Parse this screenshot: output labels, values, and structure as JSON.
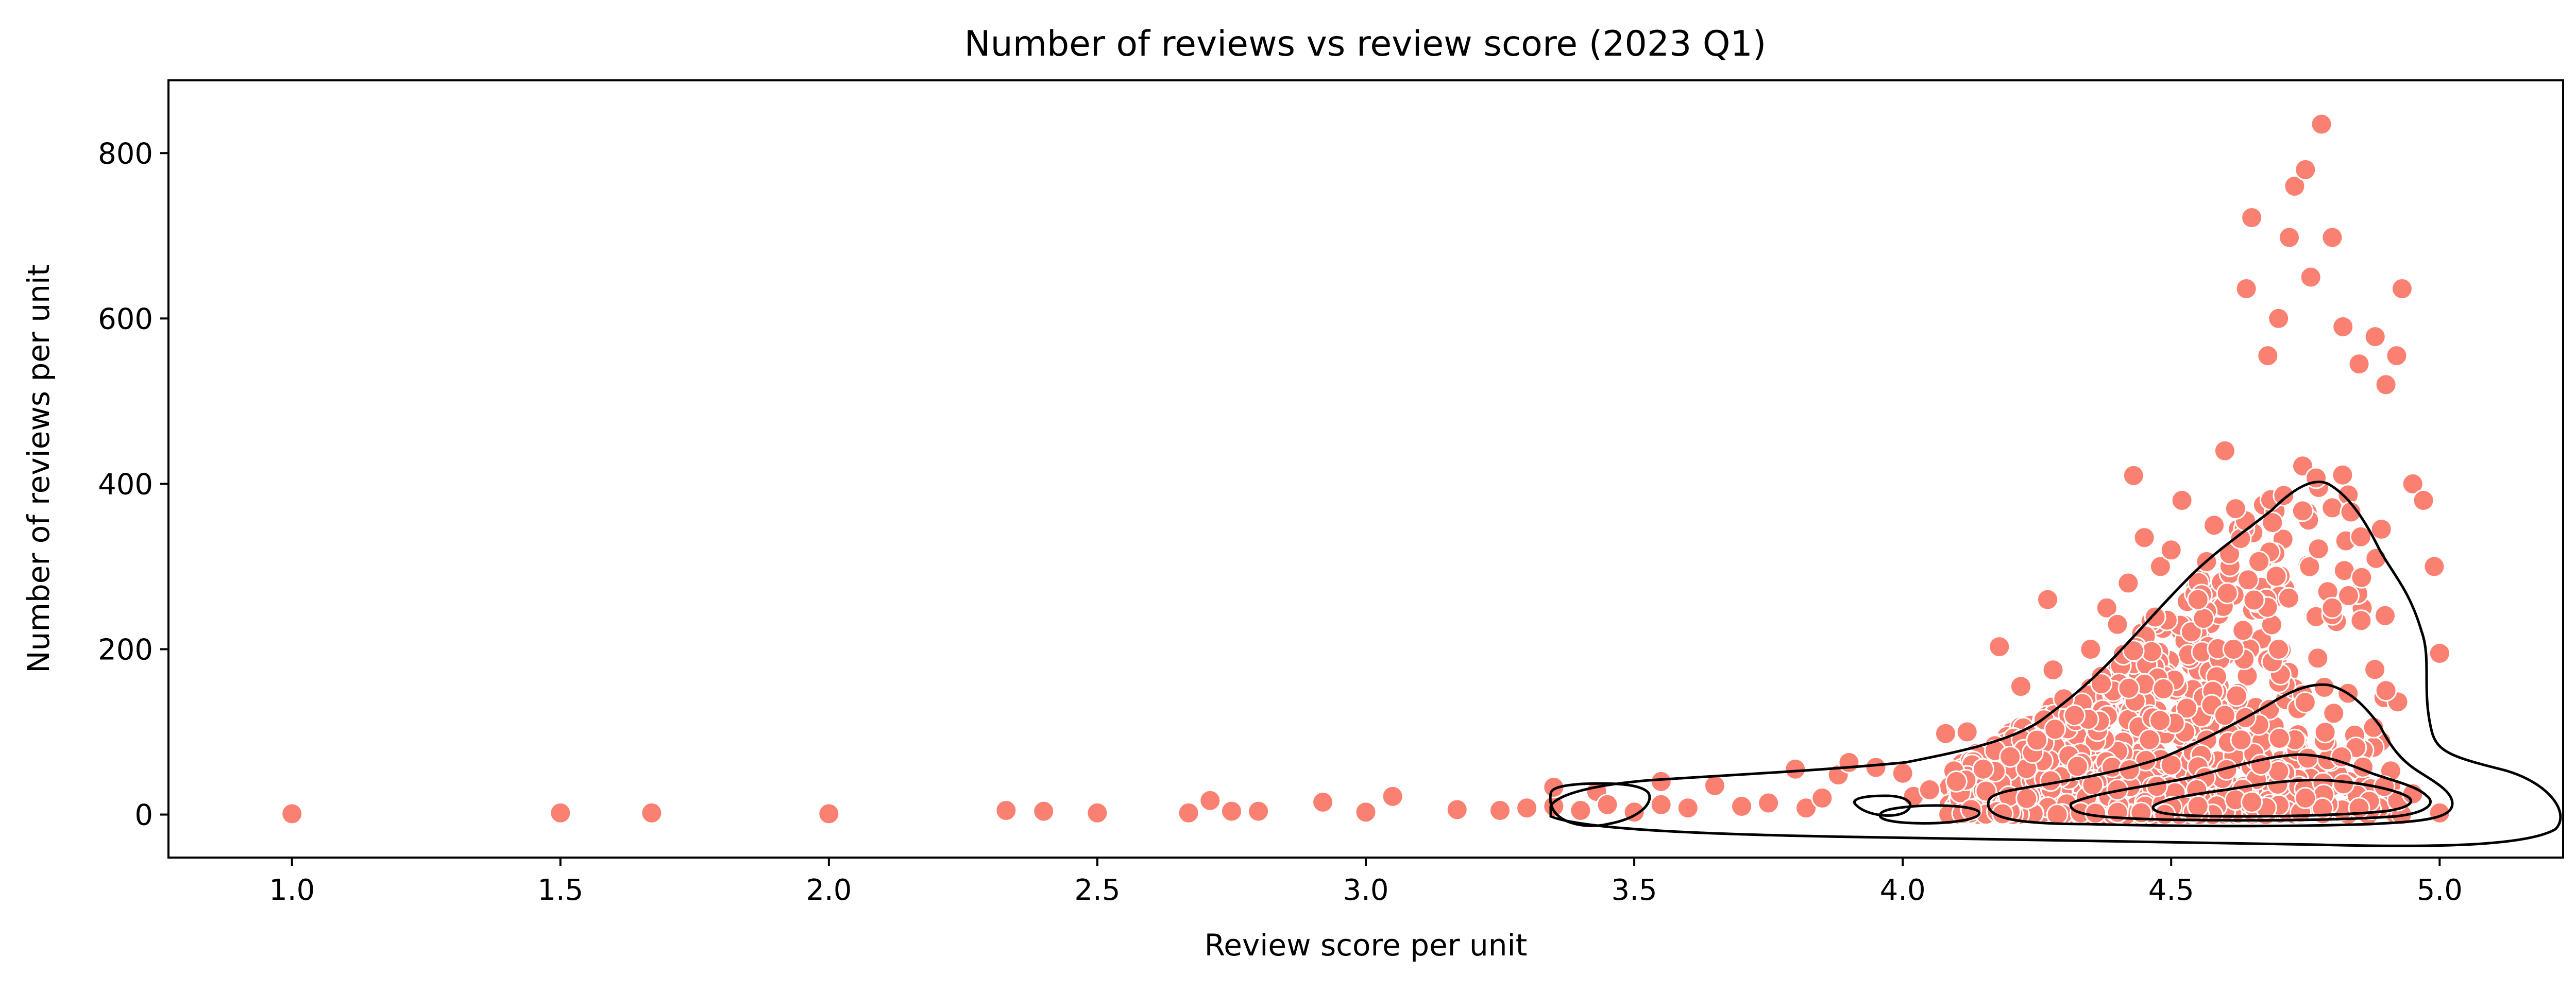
{
  "chart_data": {
    "type": "scatter",
    "title": "Number of reviews vs review score (2023 Q1)",
    "xlabel": "Review score per unit",
    "ylabel": "Number of reviews per unit",
    "xlim": [
      0.77,
      5.23
    ],
    "ylim": [
      -52,
      888
    ],
    "x_ticks": [
      "1.0",
      "1.5",
      "2.0",
      "2.5",
      "3.0",
      "3.5",
      "4.0",
      "4.5",
      "5.0"
    ],
    "y_ticks": [
      "0",
      "200",
      "400",
      "600",
      "800"
    ],
    "grid": false,
    "marker_color": "#fa8072",
    "marker_edge_color": "#ffffff",
    "contour_color": "#000000",
    "overlay": "kde-contours",
    "points": [
      [
        1.0,
        1
      ],
      [
        1.5,
        2
      ],
      [
        1.67,
        2
      ],
      [
        2.0,
        1
      ],
      [
        2.33,
        5
      ],
      [
        2.4,
        4
      ],
      [
        2.5,
        2
      ],
      [
        2.67,
        2
      ],
      [
        2.71,
        17
      ],
      [
        2.75,
        4
      ],
      [
        2.8,
        4
      ],
      [
        2.92,
        15
      ],
      [
        3.0,
        3
      ],
      [
        3.05,
        22
      ],
      [
        3.17,
        6
      ],
      [
        3.25,
        5
      ],
      [
        3.3,
        8
      ],
      [
        3.35,
        10
      ],
      [
        3.35,
        33
      ],
      [
        3.4,
        5
      ],
      [
        3.43,
        28
      ],
      [
        3.45,
        12
      ],
      [
        3.5,
        3
      ],
      [
        3.55,
        40
      ],
      [
        3.55,
        12
      ],
      [
        3.6,
        8
      ],
      [
        3.65,
        35
      ],
      [
        3.7,
        10
      ],
      [
        3.75,
        14
      ],
      [
        3.8,
        55
      ],
      [
        3.82,
        8
      ],
      [
        3.85,
        20
      ],
      [
        3.88,
        48
      ],
      [
        3.9,
        63
      ],
      [
        3.95,
        57
      ],
      [
        4.0,
        50
      ],
      [
        4.02,
        22
      ],
      [
        4.05,
        30
      ],
      [
        4.08,
        98
      ],
      [
        4.1,
        40
      ],
      [
        4.12,
        100
      ],
      [
        4.15,
        55
      ],
      [
        4.18,
        203
      ],
      [
        4.2,
        70
      ],
      [
        4.22,
        155
      ],
      [
        4.25,
        90
      ],
      [
        4.27,
        260
      ],
      [
        4.28,
        175
      ],
      [
        4.3,
        140
      ],
      [
        4.32,
        120
      ],
      [
        4.35,
        200
      ],
      [
        4.38,
        250
      ],
      [
        4.4,
        230
      ],
      [
        4.42,
        280
      ],
      [
        4.43,
        410
      ],
      [
        4.45,
        335
      ],
      [
        4.48,
        300
      ],
      [
        4.5,
        320
      ],
      [
        4.52,
        380
      ],
      [
        4.55,
        260
      ],
      [
        4.58,
        350
      ],
      [
        4.6,
        440
      ],
      [
        4.62,
        370
      ],
      [
        4.64,
        636
      ],
      [
        4.65,
        722
      ],
      [
        4.68,
        555
      ],
      [
        4.7,
        600
      ],
      [
        4.72,
        698
      ],
      [
        4.73,
        760
      ],
      [
        4.75,
        780
      ],
      [
        4.76,
        650
      ],
      [
        4.78,
        835
      ],
      [
        4.8,
        698
      ],
      [
        4.82,
        590
      ],
      [
        4.85,
        545
      ],
      [
        4.88,
        578
      ],
      [
        4.9,
        520
      ],
      [
        4.92,
        555
      ],
      [
        4.93,
        636
      ],
      [
        4.95,
        400
      ],
      [
        4.97,
        380
      ],
      [
        4.99,
        300
      ],
      [
        5.0,
        195
      ],
      [
        5.0,
        2
      ],
      [
        4.4,
        30
      ],
      [
        4.5,
        60
      ],
      [
        4.6,
        120
      ],
      [
        4.7,
        200
      ],
      [
        4.8,
        250
      ],
      [
        4.9,
        150
      ],
      [
        4.55,
        10
      ],
      [
        4.65,
        15
      ],
      [
        4.75,
        20
      ],
      [
        4.85,
        8
      ],
      [
        4.95,
        25
      ]
    ]
  }
}
